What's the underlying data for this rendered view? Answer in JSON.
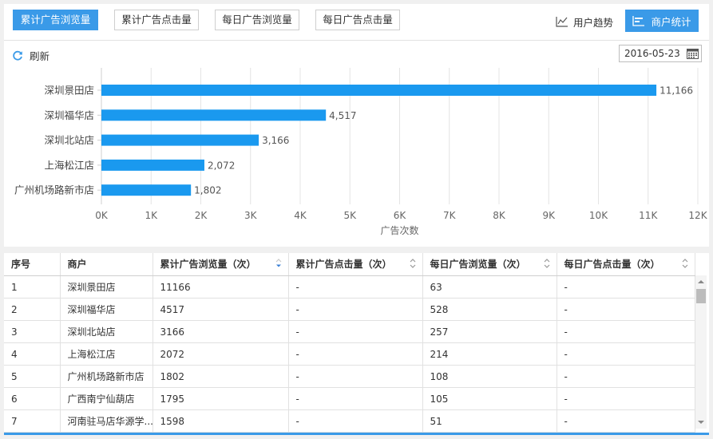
{
  "tabs": [
    {
      "label": "累计广告浏览量",
      "active": true
    },
    {
      "label": "累计广告点击量",
      "active": false
    },
    {
      "label": "每日广告浏览量",
      "active": false
    },
    {
      "label": "每日广告点击量",
      "active": false
    }
  ],
  "toolbar": {
    "trend_label": "用户趋势",
    "stats_label": "商户统计",
    "refresh_label": "刷新",
    "date_value": "2016-05-23"
  },
  "colors": {
    "accent": "#3a9ae8",
    "bar": "#1a99ef"
  },
  "chart_data": {
    "type": "bar",
    "orientation": "horizontal",
    "categories": [
      "深圳景田店",
      "深圳福华店",
      "深圳北站店",
      "上海松江店",
      "广州机场路新市店"
    ],
    "values": [
      11166,
      4517,
      3166,
      2072,
      1802
    ],
    "value_labels": [
      "11,166",
      "4,517",
      "3,166",
      "2,072",
      "1,802"
    ],
    "xticks": [
      "0K",
      "1K",
      "2K",
      "3K",
      "4K",
      "5K",
      "6K",
      "7K",
      "8K",
      "9K",
      "10K",
      "11K",
      "12K"
    ],
    "xlim": [
      0,
      12000
    ],
    "xlabel": "广告次数",
    "grid": true
  },
  "table": {
    "headers": [
      "序号",
      "商户",
      "累计广告浏览量（次）",
      "累计广告点击量（次）",
      "每日广告浏览量（次）",
      "每日广告点击量（次）"
    ],
    "rows": [
      [
        "1",
        "深圳景田店",
        "11166",
        "-",
        "63",
        "-"
      ],
      [
        "2",
        "深圳福华店",
        "4517",
        "-",
        "528",
        "-"
      ],
      [
        "3",
        "深圳北站店",
        "3166",
        "-",
        "257",
        "-"
      ],
      [
        "4",
        "上海松江店",
        "2072",
        "-",
        "214",
        "-"
      ],
      [
        "5",
        "广州机场路新市店",
        "1802",
        "-",
        "108",
        "-"
      ],
      [
        "6",
        "广西南宁仙葫店",
        "1795",
        "-",
        "105",
        "-"
      ],
      [
        "7",
        "河南驻马店华源学...",
        "1598",
        "-",
        "51",
        "-"
      ]
    ]
  }
}
